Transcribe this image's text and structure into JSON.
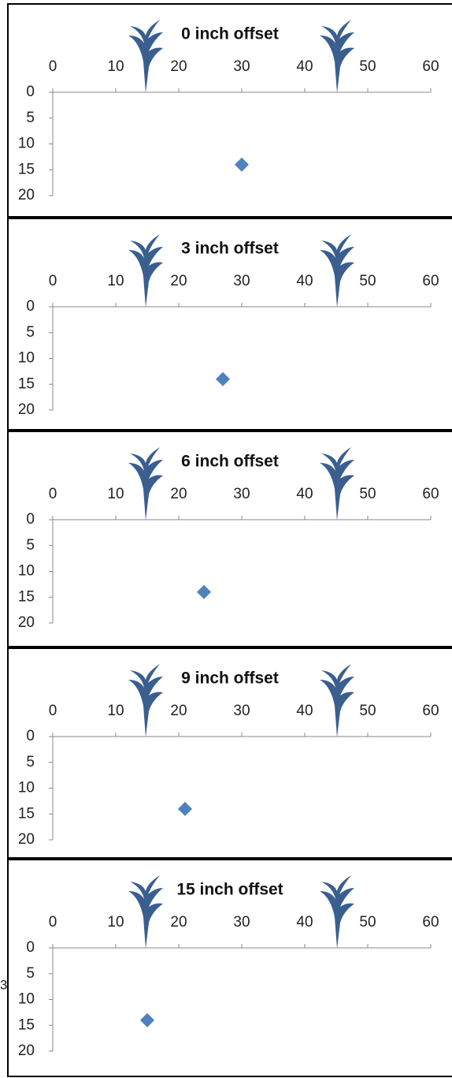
{
  "chart_data": [
    {
      "type": "scatter",
      "title": "0 inch offset",
      "x": [
        30
      ],
      "values": [
        14
      ],
      "color": "#4f81bd",
      "xlim": [
        0,
        60
      ],
      "xticks": [
        0,
        10,
        20,
        30,
        40,
        50,
        60
      ],
      "ylim": [
        0,
        20
      ],
      "yticks": [
        0,
        5,
        10,
        15,
        20
      ],
      "y_inverted": true
    },
    {
      "type": "scatter",
      "title": "3 inch offset",
      "x": [
        27
      ],
      "values": [
        14
      ],
      "color": "#4f81bd",
      "xlim": [
        0,
        60
      ],
      "xticks": [
        0,
        10,
        20,
        30,
        40,
        50,
        60
      ],
      "ylim": [
        0,
        20
      ],
      "yticks": [
        0,
        5,
        10,
        15,
        20
      ],
      "y_inverted": true
    },
    {
      "type": "scatter",
      "title": "6 inch offset",
      "x": [
        24
      ],
      "values": [
        14
      ],
      "color": "#4f81bd",
      "xlim": [
        0,
        60
      ],
      "xticks": [
        0,
        10,
        20,
        30,
        40,
        50,
        60
      ],
      "ylim": [
        0,
        20
      ],
      "yticks": [
        0,
        5,
        10,
        15,
        20
      ],
      "y_inverted": true
    },
    {
      "type": "scatter",
      "title": "9 inch offset",
      "x": [
        21
      ],
      "values": [
        14
      ],
      "color": "#4f81bd",
      "xlim": [
        0,
        60
      ],
      "xticks": [
        0,
        10,
        20,
        30,
        40,
        50,
        60
      ],
      "ylim": [
        0,
        20
      ],
      "yticks": [
        0,
        5,
        10,
        15,
        20
      ],
      "y_inverted": true
    },
    {
      "type": "scatter",
      "title": "15 inch offset",
      "x": [
        15
      ],
      "values": [
        14
      ],
      "color": "#4f81bd",
      "xlim": [
        0,
        60
      ],
      "xticks": [
        0,
        10,
        20,
        30,
        40,
        50,
        60
      ],
      "ylim": [
        0,
        20
      ],
      "yticks": [
        0,
        5,
        10,
        15,
        20
      ],
      "y_inverted": true
    }
  ],
  "stray_text": "3"
}
